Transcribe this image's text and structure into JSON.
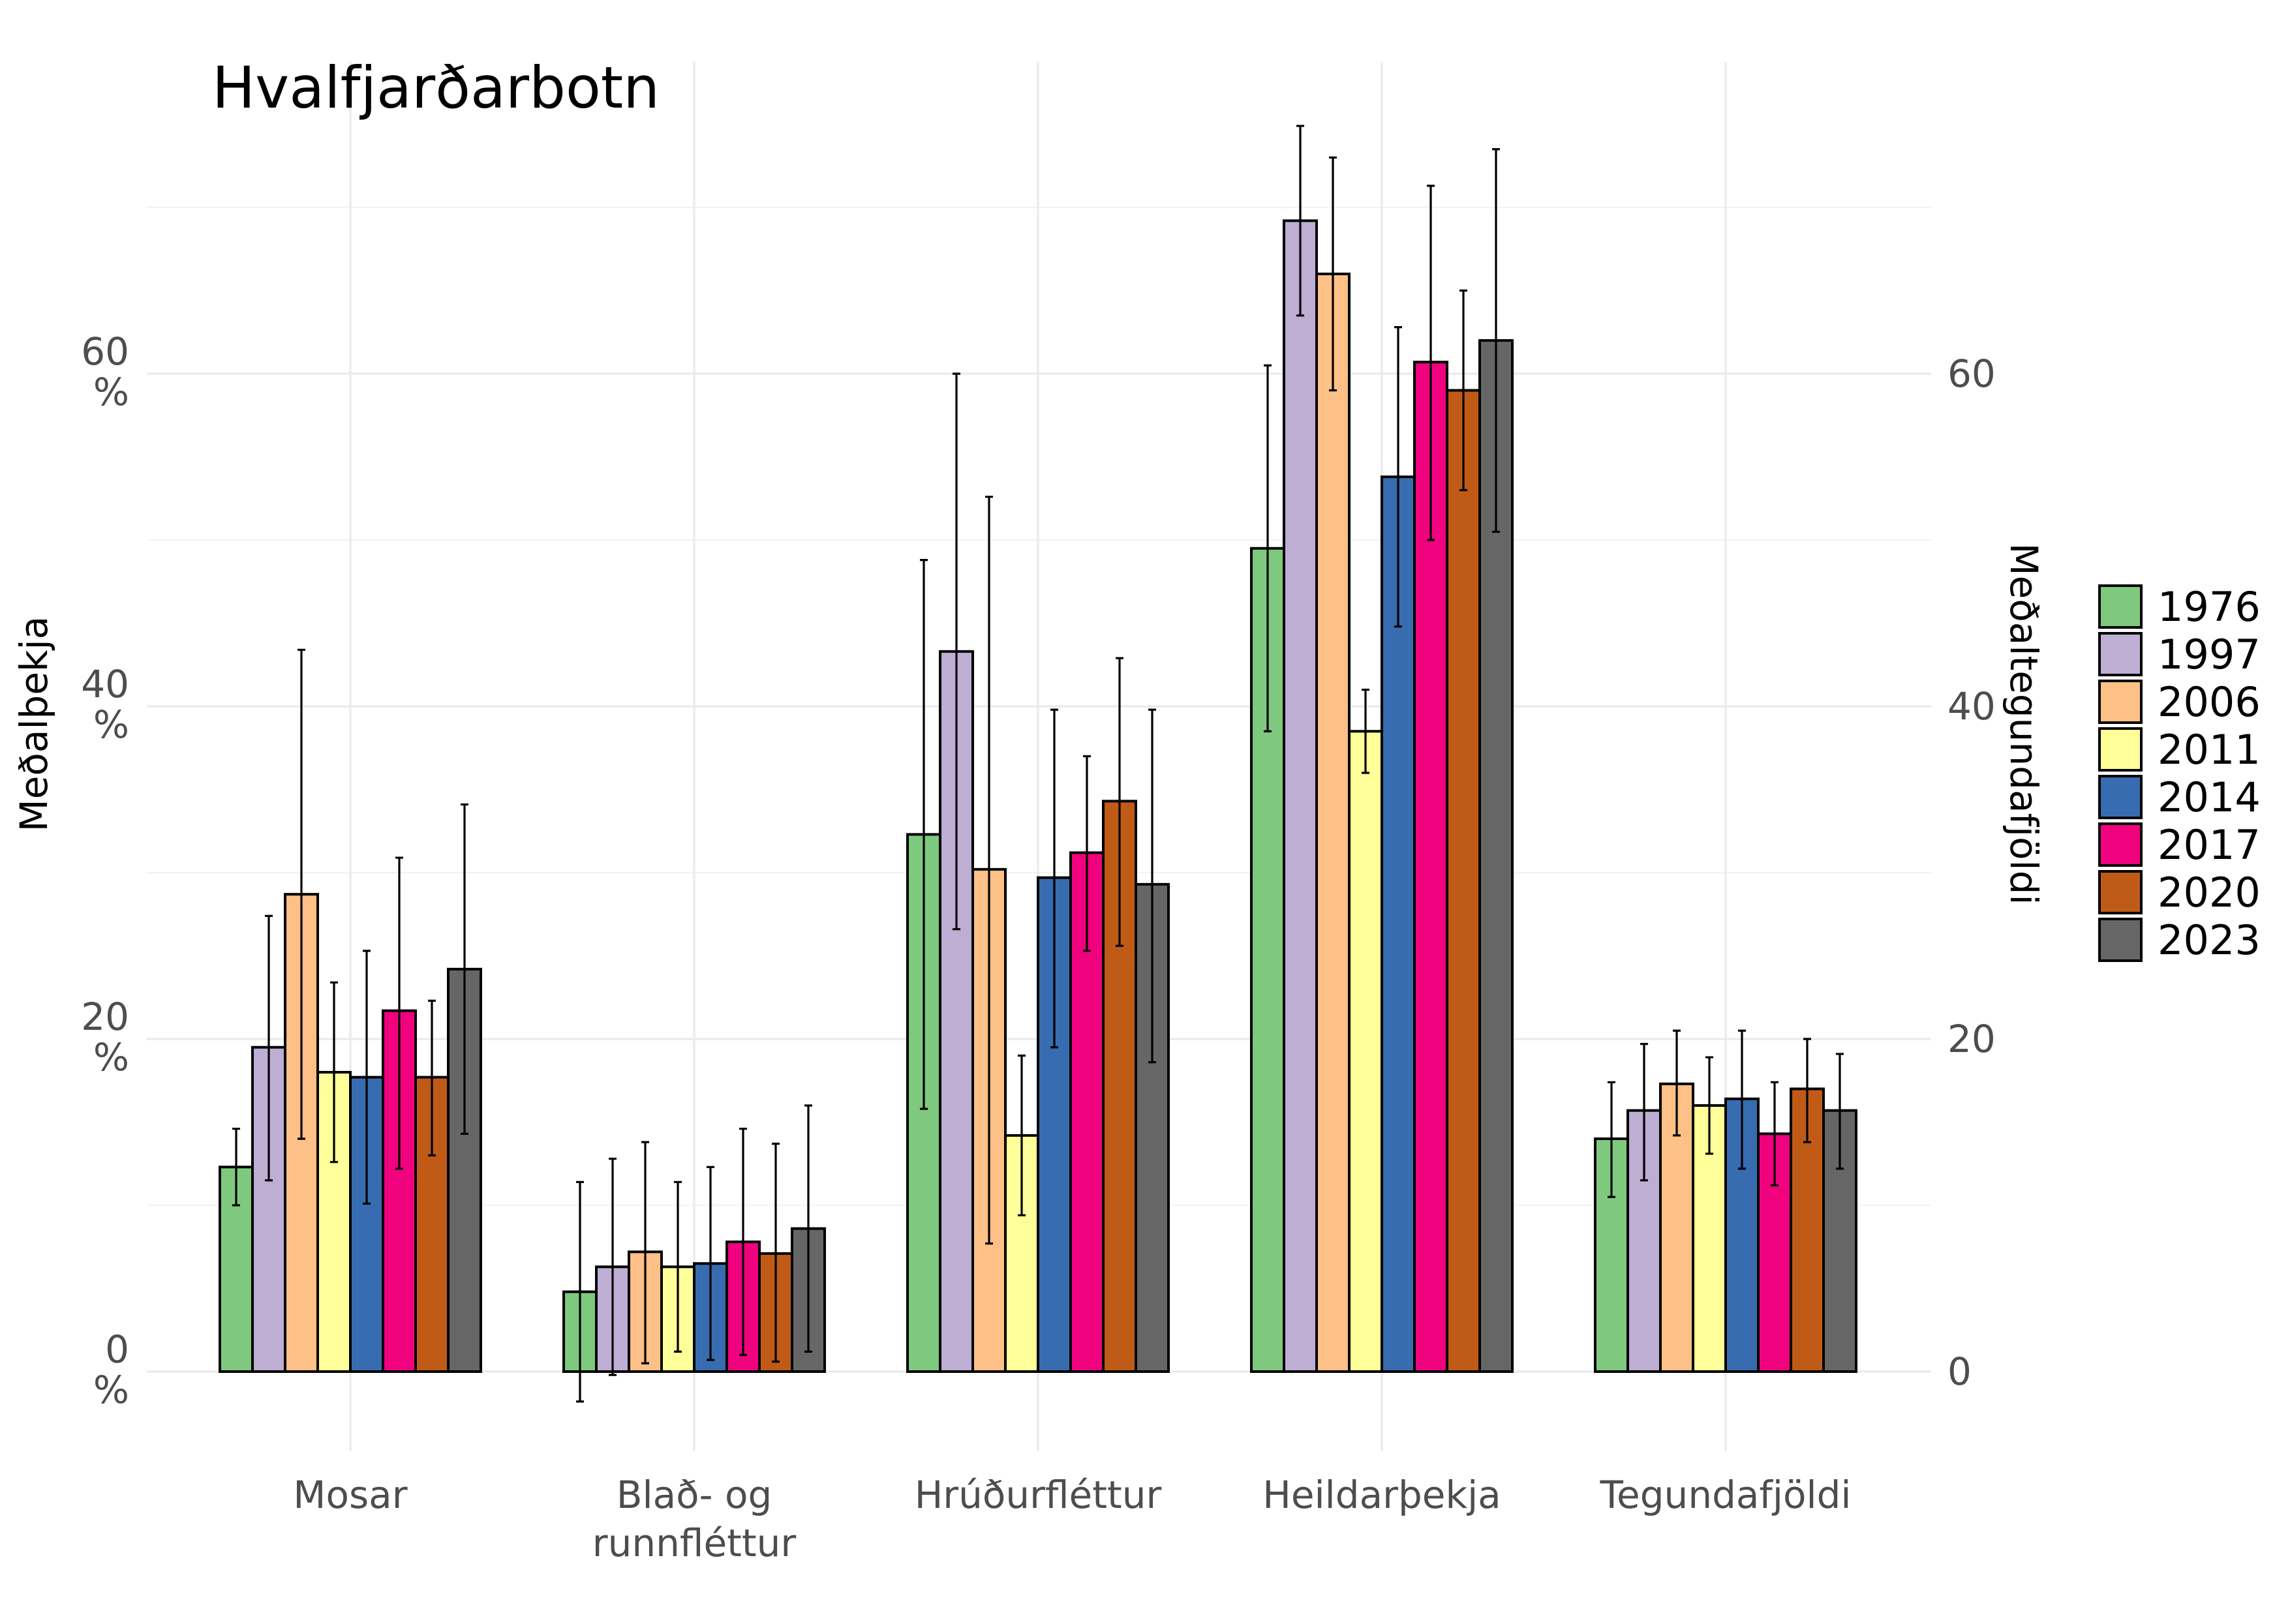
{
  "chart_data": {
    "type": "bar",
    "title": "Hvalfjarðarbotn",
    "ylabel": "Meðalþekja",
    "ylabel_right": "Meðaltegundafjöldi",
    "ylim": [
      -5,
      78
    ],
    "y_ticks": [
      0,
      20,
      40,
      60
    ],
    "y_tick_labels": [
      [
        "0",
        "%"
      ],
      [
        "20",
        "%"
      ],
      [
        "40",
        "%"
      ],
      [
        "60",
        "%"
      ]
    ],
    "y2_ticks": [
      0,
      20,
      40,
      60
    ],
    "y2_tick_labels": [
      "0",
      "20",
      "40",
      "60"
    ],
    "grid": true,
    "legend_position": "right",
    "categories": [
      [
        "Mosar"
      ],
      [
        "Blað- og",
        "runnfléttur"
      ],
      [
        "Hrúðurfléttur"
      ],
      [
        "Heildarþekja"
      ],
      [
        "Tegundafjöldi"
      ]
    ],
    "series": [
      {
        "name": "1976",
        "color": "#7fc97f",
        "values": [
          12.3,
          4.8,
          32.3,
          49.5,
          14.0
        ],
        "lower": [
          10.0,
          -1.8,
          15.8,
          38.5,
          10.5
        ],
        "upper": [
          14.6,
          11.4,
          48.8,
          60.5,
          17.4
        ]
      },
      {
        "name": "1997",
        "color": "#beaed4",
        "values": [
          19.5,
          6.3,
          43.3,
          69.2,
          15.7
        ],
        "lower": [
          11.5,
          -0.2,
          26.6,
          63.5,
          11.5
        ],
        "upper": [
          27.4,
          12.8,
          60.0,
          74.9,
          19.7
        ]
      },
      {
        "name": "2006",
        "color": "#fdc086",
        "values": [
          28.7,
          7.2,
          30.2,
          66.0,
          17.3
        ],
        "lower": [
          14.0,
          0.5,
          7.7,
          59.0,
          14.2
        ],
        "upper": [
          43.4,
          13.8,
          52.6,
          73.0,
          20.5
        ]
      },
      {
        "name": "2011",
        "color": "#ffff99",
        "values": [
          18.0,
          6.3,
          14.2,
          38.5,
          16.0
        ],
        "lower": [
          12.6,
          1.2,
          9.4,
          36.0,
          13.1
        ],
        "upper": [
          23.4,
          11.4,
          19.0,
          41.0,
          18.9
        ]
      },
      {
        "name": "2014",
        "color": "#386cb0",
        "values": [
          17.7,
          6.5,
          29.7,
          53.8,
          16.4
        ],
        "lower": [
          10.1,
          0.7,
          19.5,
          44.8,
          12.2
        ],
        "upper": [
          25.3,
          12.3,
          39.8,
          62.8,
          20.5
        ]
      },
      {
        "name": "2017",
        "color": "#f0027f",
        "values": [
          21.7,
          7.8,
          31.2,
          60.7,
          14.3
        ],
        "lower": [
          12.2,
          1.0,
          25.3,
          50.0,
          11.2
        ],
        "upper": [
          30.9,
          14.6,
          37.0,
          71.3,
          17.4
        ]
      },
      {
        "name": "2020",
        "color": "#bf5b17",
        "values": [
          17.7,
          7.1,
          34.3,
          59.0,
          17.0
        ],
        "lower": [
          13.0,
          0.6,
          25.6,
          53.0,
          13.8
        ],
        "upper": [
          22.3,
          13.7,
          42.9,
          65.0,
          20.0
        ]
      },
      {
        "name": "2023",
        "color": "#666666",
        "values": [
          24.2,
          8.6,
          29.3,
          62.0,
          15.7
        ],
        "lower": [
          14.3,
          1.2,
          18.6,
          50.5,
          12.2
        ],
        "upper": [
          34.1,
          16.0,
          39.8,
          73.5,
          19.1
        ]
      }
    ]
  }
}
